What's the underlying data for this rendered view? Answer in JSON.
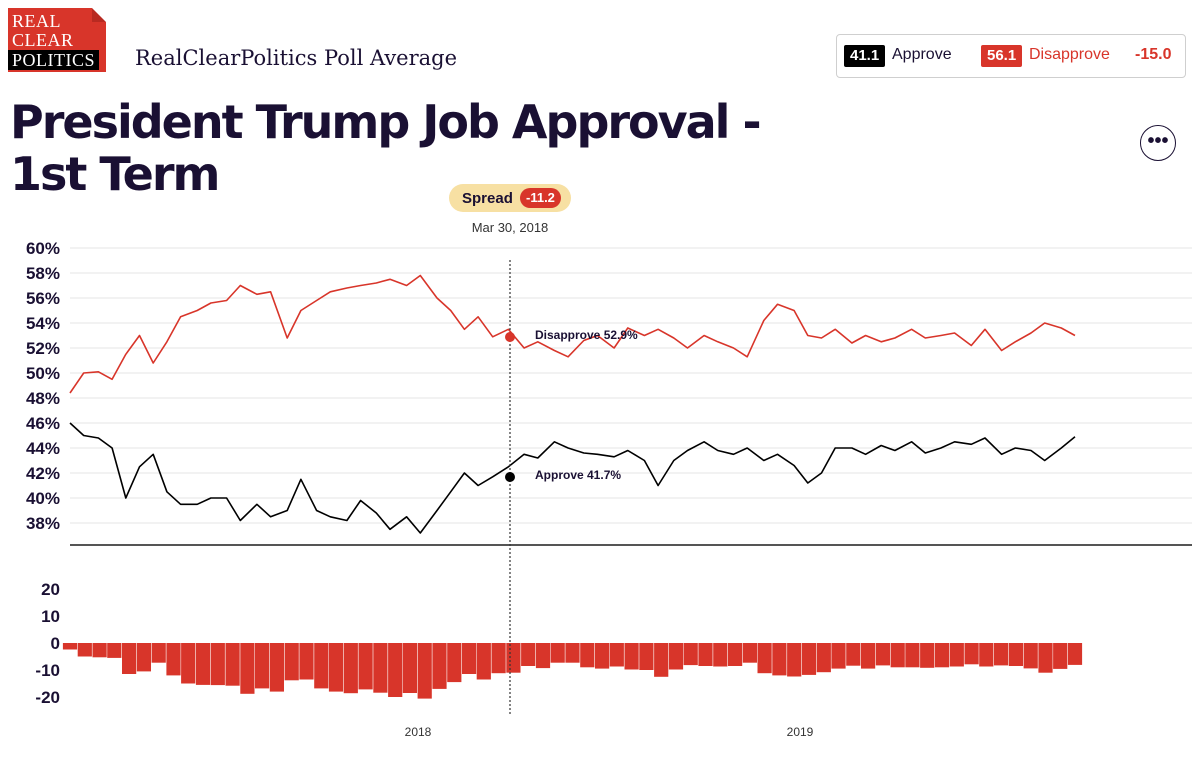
{
  "header": {
    "logo_line1": "REAL",
    "logo_line2": "CLEAR",
    "logo_line3": "POLITICS",
    "subtitle": "RealClearPolitics Poll Average",
    "title": "President Trump Job Approval - 1st Term",
    "more_label": "•••"
  },
  "summary": {
    "approve_value": "41.1",
    "approve_label": "Approve",
    "disapprove_value": "56.1",
    "disapprove_label": "Disapprove",
    "spread_value": "-15.0"
  },
  "hover": {
    "spread_label": "Spread",
    "spread_value": "-11.2",
    "date": "Mar 30, 2018",
    "disapprove_label": "Disapprove 52.9%",
    "approve_label": "Approve 41.7%"
  },
  "colors": {
    "approve": "#000000",
    "disapprove": "#d8352a",
    "title": "#1a1033",
    "spread_pill": "#f7e0a3"
  },
  "chart_data": [
    {
      "type": "line",
      "title": "",
      "xlabel": "",
      "ylabel": "",
      "ylim": [
        36,
        60
      ],
      "y_ticks": [
        "60%",
        "58%",
        "56%",
        "54%",
        "52%",
        "50%",
        "48%",
        "46%",
        "44%",
        "42%",
        "40%",
        "38%"
      ],
      "x_tick_labels": [
        "2018",
        "2019"
      ],
      "x": [
        "2017-01-22",
        "2017-02-05",
        "2017-02-20",
        "2017-03-06",
        "2017-03-20",
        "2017-04-03",
        "2017-04-17",
        "2017-05-01",
        "2017-05-15",
        "2017-06-01",
        "2017-06-15",
        "2017-07-01",
        "2017-07-15",
        "2017-08-01",
        "2017-08-15",
        "2017-09-01",
        "2017-09-15",
        "2017-10-01",
        "2017-10-15",
        "2017-11-01",
        "2017-11-15",
        "2017-12-01",
        "2017-12-15",
        "2018-01-01",
        "2018-01-15",
        "2018-02-01",
        "2018-02-15",
        "2018-03-01",
        "2018-03-15",
        "2018-03-30",
        "2018-04-15",
        "2018-05-01",
        "2018-05-15",
        "2018-06-01",
        "2018-06-15",
        "2018-07-01",
        "2018-07-15",
        "2018-08-01",
        "2018-08-15",
        "2018-09-01",
        "2018-09-15",
        "2018-10-01",
        "2018-10-15",
        "2018-11-01",
        "2018-11-15",
        "2018-12-01",
        "2018-12-15",
        "2019-01-01",
        "2019-01-15",
        "2019-02-01",
        "2019-02-15",
        "2019-03-01",
        "2019-03-15",
        "2019-04-01",
        "2019-04-15",
        "2019-05-01",
        "2019-05-15",
        "2019-06-01",
        "2019-06-15",
        "2019-07-01",
        "2019-07-15",
        "2019-08-01",
        "2019-08-15",
        "2019-09-01",
        "2019-09-15",
        "2019-10-01",
        "2019-10-15",
        "2019-11-01",
        "2019-11-15"
      ],
      "series": [
        {
          "name": "Disapprove",
          "values": [
            48.4,
            50.0,
            50.1,
            49.5,
            51.5,
            53.0,
            50.8,
            52.5,
            54.5,
            55.0,
            55.6,
            55.8,
            57.0,
            56.3,
            56.5,
            52.8,
            55.0,
            55.8,
            56.5,
            56.8,
            57.0,
            57.2,
            57.5,
            57.0,
            57.8,
            56.0,
            55.0,
            53.5,
            54.5,
            52.9,
            53.5,
            52.0,
            52.5,
            51.8,
            51.3,
            52.6,
            53.0,
            52.0,
            53.6,
            53.0,
            53.5,
            52.8,
            52.0,
            53.0,
            52.5,
            52.0,
            51.3,
            54.2,
            55.5,
            55.0,
            53.0,
            52.8,
            53.5,
            52.4,
            53.0,
            52.5,
            52.8,
            53.5,
            52.8,
            53.0,
            53.2,
            52.2,
            53.5,
            51.8,
            52.5,
            53.2,
            54.0,
            53.6,
            53.0
          ]
        },
        {
          "name": "Approve",
          "values": [
            46.0,
            45.0,
            44.8,
            44.0,
            40.0,
            42.5,
            43.5,
            40.5,
            39.5,
            39.5,
            40.0,
            40.0,
            38.2,
            39.5,
            38.5,
            39.0,
            41.5,
            39.0,
            38.5,
            38.2,
            39.8,
            38.8,
            37.5,
            38.5,
            37.2,
            39.0,
            40.5,
            42.0,
            41.0,
            41.7,
            42.5,
            43.5,
            43.2,
            44.5,
            44.0,
            43.6,
            43.5,
            43.3,
            43.8,
            43.0,
            41.0,
            43.0,
            43.8,
            44.5,
            43.8,
            43.5,
            44.0,
            43.0,
            43.5,
            42.6,
            41.2,
            42.0,
            44.0,
            44.0,
            43.5,
            44.2,
            43.8,
            44.5,
            43.6,
            44.0,
            44.5,
            44.3,
            44.8,
            43.5,
            44.0,
            43.8,
            43.0,
            44.0,
            44.9
          ]
        }
      ]
    },
    {
      "type": "bar",
      "title": "",
      "ylim": [
        -22,
        26
      ],
      "y_ticks": [
        "20",
        "10",
        "0",
        "-10",
        "-20"
      ],
      "x_tick_labels": [
        "2018",
        "2019"
      ],
      "series": [
        {
          "name": "Spread",
          "values": [
            -2.4,
            -5.0,
            -5.3,
            -5.5,
            -11.5,
            -10.5,
            -7.3,
            -12.0,
            -15.0,
            -15.5,
            -15.6,
            -15.8,
            -18.8,
            -16.8,
            -18.0,
            -13.8,
            -13.5,
            -16.8,
            -18.0,
            -18.6,
            -17.2,
            -18.4,
            -20.0,
            -18.5,
            -20.6,
            -17.0,
            -14.5,
            -11.5,
            -13.5,
            -11.2,
            -11.0,
            -8.5,
            -9.3,
            -7.3,
            -7.3,
            -9.0,
            -9.5,
            -8.7,
            -9.8,
            -10.0,
            -12.5,
            -9.8,
            -8.2,
            -8.5,
            -8.7,
            -8.5,
            -7.3,
            -11.2,
            -12.0,
            -12.4,
            -11.8,
            -10.8,
            -9.5,
            -8.4,
            -9.5,
            -8.3,
            -9.0,
            -9.0,
            -9.2,
            -9.0,
            -8.7,
            -7.9,
            -8.7,
            -8.3,
            -8.5,
            -9.4,
            -11.0,
            -9.6,
            -8.1
          ]
        }
      ]
    }
  ]
}
